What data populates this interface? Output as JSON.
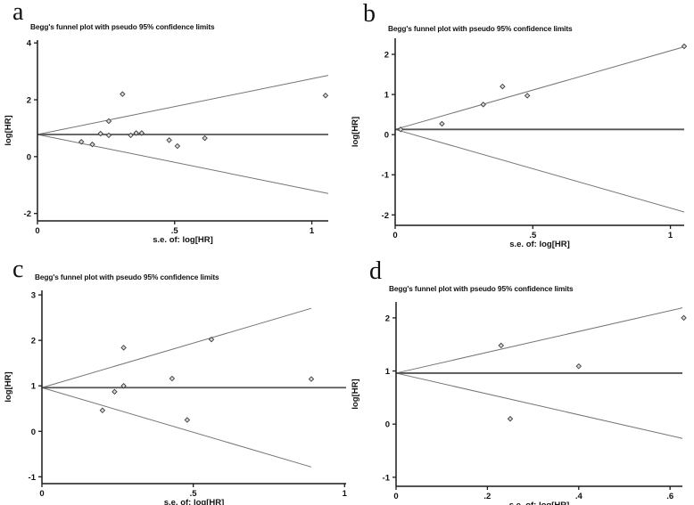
{
  "figure": {
    "background": "#ffffff"
  },
  "style": {
    "axis_color": "#1b1b1b",
    "funnel_line_color": "#757575",
    "pooled_line_color": "#555555",
    "marker_stroke": "#3c3c3c",
    "marker_fill": "#d9d9d9",
    "text_color": "#111111"
  },
  "chart_data": [
    {
      "id": "a",
      "type": "scatter",
      "panel_letter": "a",
      "title": "Begg's funnel plot with pseudo 95% confidence limits",
      "xlabel": "s.e. of: log[HR]",
      "ylabel": "log[HR]",
      "xlim": [
        0,
        1.06
      ],
      "ylim": [
        -2.26,
        4.1
      ],
      "x_ticks": [
        {
          "v": 0,
          "label": "0"
        },
        {
          "v": 0.5,
          "label": ".5"
        },
        {
          "v": 1,
          "label": "1"
        }
      ],
      "y_ticks": [
        {
          "v": -2,
          "label": "-2"
        },
        {
          "v": 0,
          "label": "0"
        },
        {
          "v": 2,
          "label": "2"
        },
        {
          "v": 4,
          "label": "4"
        }
      ],
      "funnel": {
        "center_log_hr": 0.78,
        "max_se": 1.06,
        "ci_slope": 1.96
      },
      "grid": false,
      "legend": false,
      "points": [
        [
          0.31,
          2.2
        ],
        [
          1.05,
          2.15
        ],
        [
          0.26,
          1.25
        ],
        [
          0.23,
          0.81
        ],
        [
          0.26,
          0.75
        ],
        [
          0.34,
          0.75
        ],
        [
          0.36,
          0.83
        ],
        [
          0.38,
          0.83
        ],
        [
          0.16,
          0.52
        ],
        [
          0.2,
          0.43
        ],
        [
          0.48,
          0.58
        ],
        [
          0.51,
          0.37
        ],
        [
          0.61,
          0.65
        ]
      ]
    },
    {
      "id": "b",
      "type": "scatter",
      "panel_letter": "b",
      "title": "Begg's funnel plot with pseudo 95% confidence limits",
      "xlabel": "s.e. of: log[HR]",
      "ylabel": "log[HR]",
      "xlim": [
        0,
        1.05
      ],
      "ylim": [
        -2.26,
        2.4
      ],
      "x_ticks": [
        {
          "v": 0,
          "label": "0"
        },
        {
          "v": 0.5,
          "label": ".5"
        },
        {
          "v": 1,
          "label": "1"
        }
      ],
      "y_ticks": [
        {
          "v": -2,
          "label": "-2"
        },
        {
          "v": -1,
          "label": "-1"
        },
        {
          "v": 0,
          "label": "0"
        },
        {
          "v": 1,
          "label": "1"
        },
        {
          "v": 2,
          "label": "2"
        }
      ],
      "funnel": {
        "center_log_hr": 0.13,
        "max_se": 1.05,
        "ci_slope": 1.96
      },
      "grid": false,
      "legend": false,
      "points": [
        [
          1.05,
          2.2
        ],
        [
          0.39,
          1.2
        ],
        [
          0.48,
          0.97
        ],
        [
          0.32,
          0.75
        ],
        [
          0.17,
          0.27
        ],
        [
          0.02,
          0.13
        ]
      ]
    },
    {
      "id": "c",
      "type": "scatter",
      "panel_letter": "c",
      "title": "Begg's funnel plot with pseudo 95% confidence limits",
      "xlabel": "s.e. of: log[HR]",
      "ylabel": "log[HR]",
      "xlim": [
        0,
        1.005
      ],
      "ylim": [
        -1.15,
        3.1
      ],
      "x_ticks": [
        {
          "v": 0,
          "label": "0"
        },
        {
          "v": 0.5,
          "label": ".5"
        },
        {
          "v": 1,
          "label": "1"
        }
      ],
      "y_ticks": [
        {
          "v": -1,
          "label": "-1"
        },
        {
          "v": 0,
          "label": "0"
        },
        {
          "v": 1,
          "label": "1"
        },
        {
          "v": 2,
          "label": "2"
        },
        {
          "v": 3,
          "label": "3"
        }
      ],
      "funnel": {
        "center_log_hr": 0.96,
        "max_se": 0.89,
        "ci_slope": 1.96
      },
      "grid": false,
      "legend": false,
      "points": [
        [
          0.27,
          1.84
        ],
        [
          0.56,
          2.02
        ],
        [
          0.43,
          1.16
        ],
        [
          0.89,
          1.15
        ],
        [
          0.27,
          1.0
        ],
        [
          0.24,
          0.87
        ],
        [
          0.2,
          0.46
        ],
        [
          0.48,
          0.25
        ]
      ]
    },
    {
      "id": "d",
      "type": "scatter",
      "panel_letter": "d",
      "title": "Begg's funnel plot with pseudo 95% confidence limits",
      "xlabel": "s.e. of: log[HR]",
      "ylabel": "log[HR]",
      "xlim": [
        0,
        0.627
      ],
      "ylim": [
        -1.17,
        2.3
      ],
      "x_ticks": [
        {
          "v": 0,
          "label": "0"
        },
        {
          "v": 0.2,
          "label": ".2"
        },
        {
          "v": 0.4,
          "label": ".4"
        },
        {
          "v": 0.6,
          "label": ".6"
        }
      ],
      "y_ticks": [
        {
          "v": -1,
          "label": "-1"
        },
        {
          "v": 0,
          "label": "0"
        },
        {
          "v": 1,
          "label": "1"
        },
        {
          "v": 2,
          "label": "2"
        }
      ],
      "funnel": {
        "center_log_hr": 0.96,
        "max_se": 0.627,
        "ci_slope": 1.96
      },
      "grid": false,
      "legend": false,
      "points": [
        [
          0.23,
          1.48
        ],
        [
          0.63,
          2.0
        ],
        [
          0.4,
          1.09
        ],
        [
          0.25,
          0.1
        ]
      ]
    }
  ]
}
